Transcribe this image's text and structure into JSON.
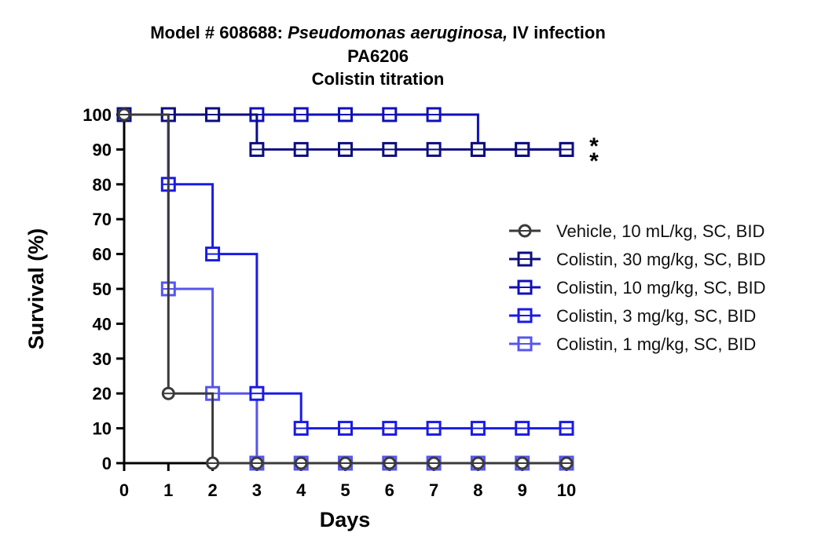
{
  "chart_data": {
    "type": "line",
    "step": true,
    "title_line1_plain": "Model # 608688: ",
    "title_line1_italic": "Pseudomonas aeruginosa,",
    "title_line1_tail": " IV infection",
    "title_line2": "PA6206",
    "title_line3": "Colistin titration",
    "xlabel": "Days",
    "ylabel": "Survival (%)",
    "xlim": [
      0,
      10
    ],
    "ylim": [
      0,
      100
    ],
    "xticks": [
      "0",
      "1",
      "2",
      "3",
      "4",
      "5",
      "6",
      "7",
      "8",
      "9",
      "10"
    ],
    "yticks": [
      "0",
      "10",
      "20",
      "30",
      "40",
      "50",
      "60",
      "70",
      "80",
      "90",
      "100"
    ],
    "legend_position": "right",
    "grid": false,
    "annotations": [
      "*",
      "*"
    ],
    "series": [
      {
        "name": "Vehicle, 10 mL/kg, SC, BID",
        "color": "#3a3a3a",
        "marker": "circle",
        "x": [
          0,
          1,
          2,
          3,
          4,
          5,
          6,
          7,
          8,
          9,
          10
        ],
        "y": [
          100,
          20,
          0,
          0,
          0,
          0,
          0,
          0,
          0,
          0,
          0
        ]
      },
      {
        "name": "Colistin, 30 mg/kg, SC, BID",
        "color": "#0d0d80",
        "marker": "square",
        "x": [
          0,
          1,
          2,
          3,
          4,
          5,
          6,
          7,
          8,
          9,
          10
        ],
        "y": [
          100,
          100,
          100,
          90,
          90,
          90,
          90,
          90,
          90,
          90,
          90
        ]
      },
      {
        "name": "Colistin, 10 mg/kg, SC, BID",
        "color": "#1010b8",
        "marker": "square",
        "x": [
          0,
          1,
          2,
          3,
          4,
          5,
          6,
          7,
          8,
          9,
          10
        ],
        "y": [
          100,
          100,
          100,
          100,
          100,
          100,
          100,
          100,
          90,
          90,
          90
        ]
      },
      {
        "name": "Colistin, 3 mg/kg, SC, BID",
        "color": "#1a1ae6",
        "marker": "square",
        "x": [
          0,
          1,
          2,
          3,
          4,
          5,
          6,
          7,
          8,
          9,
          10
        ],
        "y": [
          100,
          80,
          60,
          20,
          10,
          10,
          10,
          10,
          10,
          10,
          10
        ]
      },
      {
        "name": "Colistin, 1 mg/kg, SC, BID",
        "color": "#5555ee",
        "marker": "square",
        "x": [
          0,
          1,
          2,
          3,
          4,
          5,
          6,
          7,
          8,
          9,
          10
        ],
        "y": [
          100,
          50,
          20,
          0,
          0,
          0,
          0,
          0,
          0,
          0,
          0
        ]
      }
    ]
  }
}
